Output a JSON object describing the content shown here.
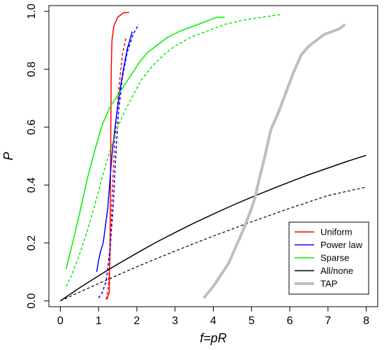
{
  "chart_data": {
    "type": "line",
    "xlabel": "f=pR",
    "ylabel": "P",
    "xlim": [
      -0.3,
      8.3
    ],
    "ylim": [
      -0.02,
      1.02
    ],
    "xticks": [
      "0",
      "1",
      "2",
      "3",
      "4",
      "5",
      "6",
      "7",
      "8"
    ],
    "yticks": [
      "0.0",
      "0.2",
      "0.4",
      "0.6",
      "0.8",
      "1.0"
    ],
    "grid": false,
    "legend_position": "bottom-right",
    "legend": [
      {
        "label": "Uniform",
        "color": "#ff0000",
        "width": "thin"
      },
      {
        "label": "Power law",
        "color": "#0000ff",
        "width": "thin"
      },
      {
        "label": "Sparse",
        "color": "#00ee00",
        "width": "thin"
      },
      {
        "label": "All/none",
        "color": "#000000",
        "width": "thin"
      },
      {
        "label": "TAP",
        "color": "#bebebe",
        "width": "thick"
      }
    ],
    "series": [
      {
        "color": "#ff0000",
        "dash": "solid",
        "width": 1.5,
        "points": [
          [
            1.22,
            0.005
          ],
          [
            1.28,
            0.03
          ],
          [
            1.3,
            0.2
          ],
          [
            1.31,
            0.4
          ],
          [
            1.32,
            0.6
          ],
          [
            1.33,
            0.8
          ],
          [
            1.35,
            0.9
          ],
          [
            1.4,
            0.95
          ],
          [
            1.5,
            0.98
          ],
          [
            1.65,
            0.995
          ],
          [
            1.8,
            0.997
          ]
        ]
      },
      {
        "color": "#ff0000",
        "dash": "dashed",
        "width": 1.5,
        "points": [
          [
            1.2,
            0.005
          ],
          [
            1.25,
            0.04
          ],
          [
            1.3,
            0.15
          ],
          [
            1.35,
            0.35
          ],
          [
            1.42,
            0.55
          ],
          [
            1.52,
            0.72
          ],
          [
            1.62,
            0.85
          ],
          [
            1.72,
            0.91
          ]
        ]
      },
      {
        "color": "#0000ff",
        "dash": "solid",
        "width": 1.5,
        "points": [
          [
            0.95,
            0.1
          ],
          [
            1.0,
            0.14
          ],
          [
            1.05,
            0.17
          ],
          [
            1.12,
            0.2
          ],
          [
            1.18,
            0.26
          ],
          [
            1.24,
            0.32
          ],
          [
            1.3,
            0.42
          ],
          [
            1.36,
            0.52
          ],
          [
            1.45,
            0.62
          ],
          [
            1.55,
            0.72
          ],
          [
            1.65,
            0.8
          ],
          [
            1.75,
            0.87
          ],
          [
            1.88,
            0.93
          ]
        ]
      },
      {
        "color": "#0000ff",
        "dash": "dashed",
        "width": 1.5,
        "points": [
          [
            1.0,
            0.01
          ],
          [
            1.1,
            0.03
          ],
          [
            1.2,
            0.07
          ],
          [
            1.3,
            0.18
          ],
          [
            1.38,
            0.32
          ],
          [
            1.44,
            0.48
          ],
          [
            1.52,
            0.65
          ],
          [
            1.62,
            0.77
          ],
          [
            1.75,
            0.86
          ],
          [
            1.9,
            0.92
          ],
          [
            2.05,
            0.955
          ]
        ]
      },
      {
        "color": "#00ee00",
        "dash": "solid",
        "width": 1.5,
        "points": [
          [
            0.15,
            0.11
          ],
          [
            0.3,
            0.19
          ],
          [
            0.5,
            0.3
          ],
          [
            0.7,
            0.42
          ],
          [
            0.9,
            0.52
          ],
          [
            1.1,
            0.61
          ],
          [
            1.3,
            0.67
          ],
          [
            1.5,
            0.71
          ],
          [
            1.7,
            0.75
          ],
          [
            1.9,
            0.79
          ],
          [
            2.1,
            0.83
          ],
          [
            2.3,
            0.86
          ],
          [
            2.5,
            0.88
          ],
          [
            2.8,
            0.91
          ],
          [
            3.1,
            0.93
          ],
          [
            3.5,
            0.95
          ],
          [
            3.9,
            0.97
          ],
          [
            4.1,
            0.98
          ],
          [
            4.3,
            0.98
          ]
        ]
      },
      {
        "color": "#00ee00",
        "dash": "dashed",
        "width": 1.5,
        "points": [
          [
            0.15,
            0.05
          ],
          [
            0.3,
            0.09
          ],
          [
            0.5,
            0.16
          ],
          [
            0.7,
            0.24
          ],
          [
            0.9,
            0.33
          ],
          [
            1.1,
            0.43
          ],
          [
            1.3,
            0.52
          ],
          [
            1.5,
            0.6
          ],
          [
            1.7,
            0.66
          ],
          [
            1.9,
            0.71
          ],
          [
            2.1,
            0.76
          ],
          [
            2.4,
            0.81
          ],
          [
            2.7,
            0.85
          ],
          [
            3.0,
            0.88
          ],
          [
            3.4,
            0.91
          ],
          [
            3.8,
            0.93
          ],
          [
            4.3,
            0.955
          ],
          [
            4.8,
            0.97
          ],
          [
            5.3,
            0.98
          ],
          [
            5.8,
            0.99
          ]
        ]
      },
      {
        "color": "#000000",
        "dash": "solid",
        "width": 1.5,
        "points": [
          [
            0.0,
            0.0
          ],
          [
            0.5,
            0.045
          ],
          [
            1.0,
            0.087
          ],
          [
            1.5,
            0.127
          ],
          [
            2.0,
            0.165
          ],
          [
            2.5,
            0.202
          ],
          [
            3.0,
            0.236
          ],
          [
            3.5,
            0.269
          ],
          [
            4.0,
            0.3
          ],
          [
            4.5,
            0.33
          ],
          [
            5.0,
            0.358
          ],
          [
            5.5,
            0.385
          ],
          [
            6.0,
            0.411
          ],
          [
            6.5,
            0.436
          ],
          [
            7.0,
            0.459
          ],
          [
            7.5,
            0.482
          ],
          [
            8.0,
            0.503
          ]
        ]
      },
      {
        "color": "#000000",
        "dash": "dashed",
        "width": 1.2,
        "points": [
          [
            0.0,
            0.0
          ],
          [
            1.0,
            0.06
          ],
          [
            2.0,
            0.118
          ],
          [
            3.0,
            0.172
          ],
          [
            4.0,
            0.224
          ],
          [
            5.0,
            0.273
          ],
          [
            6.0,
            0.32
          ],
          [
            7.0,
            0.364
          ],
          [
            8.0,
            0.393
          ]
        ]
      },
      {
        "color": "#bebebe",
        "dash": "solid",
        "width": 4,
        "points": [
          [
            3.75,
            0.01
          ],
          [
            4.0,
            0.05
          ],
          [
            4.2,
            0.09
          ],
          [
            4.4,
            0.13
          ],
          [
            4.6,
            0.19
          ],
          [
            4.8,
            0.25
          ],
          [
            5.0,
            0.32
          ],
          [
            5.1,
            0.36
          ],
          [
            5.2,
            0.42
          ],
          [
            5.35,
            0.5
          ],
          [
            5.5,
            0.59
          ],
          [
            5.7,
            0.65
          ],
          [
            5.9,
            0.72
          ],
          [
            6.1,
            0.79
          ],
          [
            6.3,
            0.85
          ],
          [
            6.5,
            0.88
          ],
          [
            6.7,
            0.9
          ],
          [
            6.9,
            0.92
          ],
          [
            7.1,
            0.93
          ],
          [
            7.3,
            0.94
          ],
          [
            7.45,
            0.955
          ]
        ]
      }
    ]
  }
}
